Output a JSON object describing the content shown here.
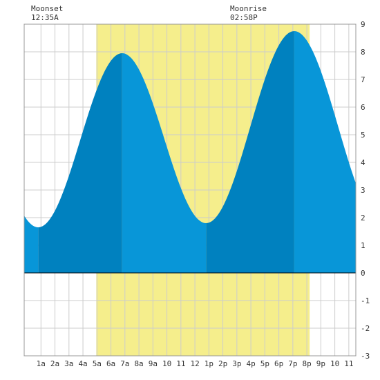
{
  "chart_data": {
    "type": "area",
    "title": "",
    "xlabel": "",
    "ylabel": "",
    "x_range_hours": [
      -0.2,
      23.5
    ],
    "ylim": [
      -3,
      9
    ],
    "y_ticks": [
      -3,
      -2,
      -1,
      0,
      1,
      2,
      3,
      4,
      5,
      6,
      7,
      8,
      9
    ],
    "x_tick_labels": [
      {
        "hour": 1,
        "label": "1a"
      },
      {
        "hour": 2,
        "label": "2a"
      },
      {
        "hour": 3,
        "label": "3a"
      },
      {
        "hour": 4,
        "label": "4a"
      },
      {
        "hour": 5,
        "label": "5a"
      },
      {
        "hour": 6,
        "label": "6a"
      },
      {
        "hour": 7,
        "label": "7a"
      },
      {
        "hour": 8,
        "label": "8a"
      },
      {
        "hour": 9,
        "label": "9a"
      },
      {
        "hour": 10,
        "label": "10"
      },
      {
        "hour": 11,
        "label": "11"
      },
      {
        "hour": 12,
        "label": "12"
      },
      {
        "hour": 13,
        "label": "1p"
      },
      {
        "hour": 14,
        "label": "2p"
      },
      {
        "hour": 15,
        "label": "3p"
      },
      {
        "hour": 16,
        "label": "4p"
      },
      {
        "hour": 17,
        "label": "5p"
      },
      {
        "hour": 18,
        "label": "6p"
      },
      {
        "hour": 19,
        "label": "7p"
      },
      {
        "hour": 20,
        "label": "8p"
      },
      {
        "hour": 21,
        "label": "9p"
      },
      {
        "hour": 22,
        "label": "10"
      },
      {
        "hour": 23,
        "label": "11"
      }
    ],
    "grid": true,
    "daylight": {
      "start_hour": 4.95,
      "end_hour": 20.2,
      "color": "#f5ee8c"
    },
    "tide_extremes": [
      {
        "hour": 0.8,
        "height": 1.65,
        "type": "low"
      },
      {
        "hour": 6.8,
        "height": 7.95,
        "type": "high"
      },
      {
        "hour": 12.8,
        "height": 1.8,
        "type": "low"
      },
      {
        "hour": 19.1,
        "height": 8.75,
        "type": "high"
      }
    ],
    "tide_start_height": 1.88,
    "tide_end_height": 2.75,
    "colors": {
      "light_fill": "#0896d8",
      "dark_fill": "#0081bf",
      "grid": "#cccccc",
      "zero_line": "#000000"
    },
    "moon_events": [
      {
        "label": "Moonset",
        "time": "12:35A",
        "hour": 0.58
      },
      {
        "label": "Moonrise",
        "time": "02:58P",
        "hour": 14.97
      }
    ]
  }
}
